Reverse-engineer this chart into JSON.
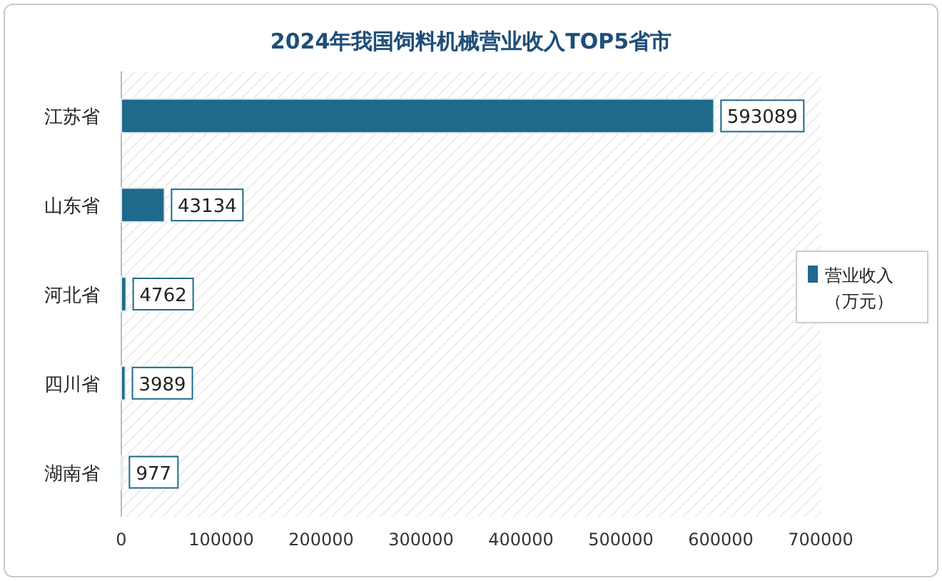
{
  "chart_data": {
    "type": "bar",
    "orientation": "horizontal",
    "title": "2024年我国饲料机械营业收入TOP5省市",
    "categories": [
      "江苏省",
      "山东省",
      "河北省",
      "四川省",
      "湖南省"
    ],
    "series": [
      {
        "name": "营业收入（万元）",
        "color": "#1f6a8c",
        "values": [
          593089,
          43134,
          4762,
          3989,
          977
        ]
      }
    ],
    "xlim": [
      0,
      700000
    ],
    "xticks": [
      0,
      100000,
      200000,
      300000,
      400000,
      500000,
      600000,
      700000
    ],
    "data_labels": true,
    "legend": "right"
  }
}
